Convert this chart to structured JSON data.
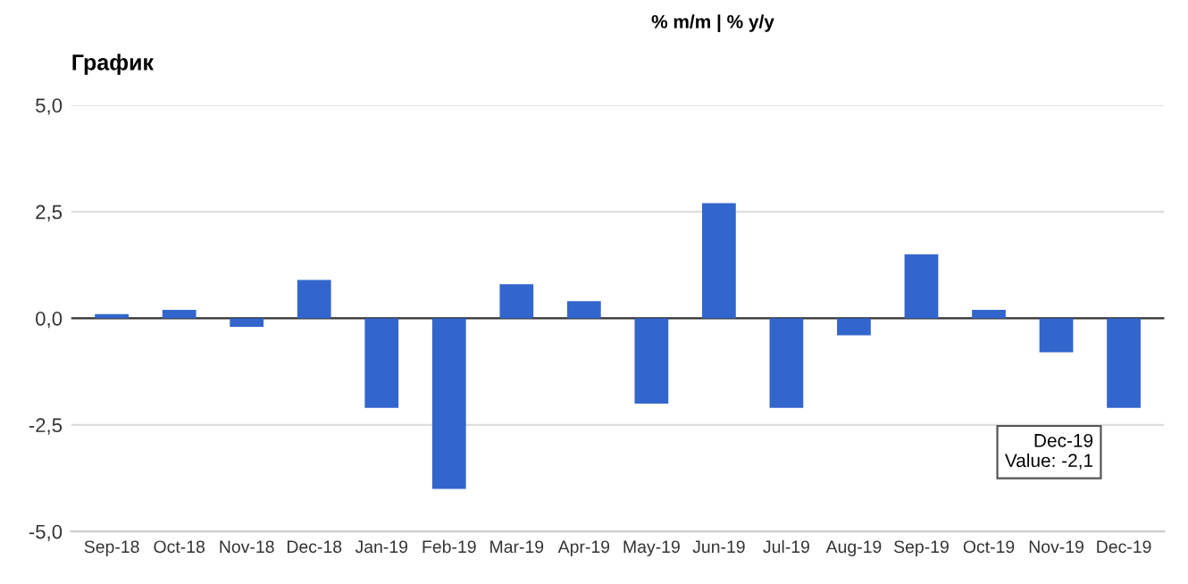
{
  "chart_data": {
    "type": "bar",
    "title": "График",
    "categories": [
      "Sep-18",
      "Oct-18",
      "Nov-18",
      "Dec-18",
      "Jan-19",
      "Feb-19",
      "Mar-19",
      "Apr-19",
      "May-19",
      "Jun-19",
      "Jul-19",
      "Aug-19",
      "Sep-19",
      "Oct-19",
      "Nov-19",
      "Dec-19"
    ],
    "values": [
      0.1,
      0.2,
      -0.2,
      0.9,
      -2.1,
      -4.0,
      0.8,
      0.4,
      -2.0,
      2.7,
      -2.1,
      -0.4,
      1.5,
      0.2,
      -0.8,
      -2.1
    ],
    "color": "#3366cc",
    "ylim": [
      -5,
      5
    ],
    "yticks": [
      {
        "value": -5,
        "label": "-5,0"
      },
      {
        "value": -2.5,
        "label": "-2,5"
      },
      {
        "value": 0,
        "label": "0,0"
      },
      {
        "value": 2.5,
        "label": "2,5"
      },
      {
        "value": 5,
        "label": "5,0"
      }
    ],
    "grid": "y",
    "annotations": [
      "% m/m | % y/y",
      {
        "text": "Dec-19\nValue: -2,1",
        "x": "Dec-19",
        "y": -2.1
      }
    ]
  }
}
